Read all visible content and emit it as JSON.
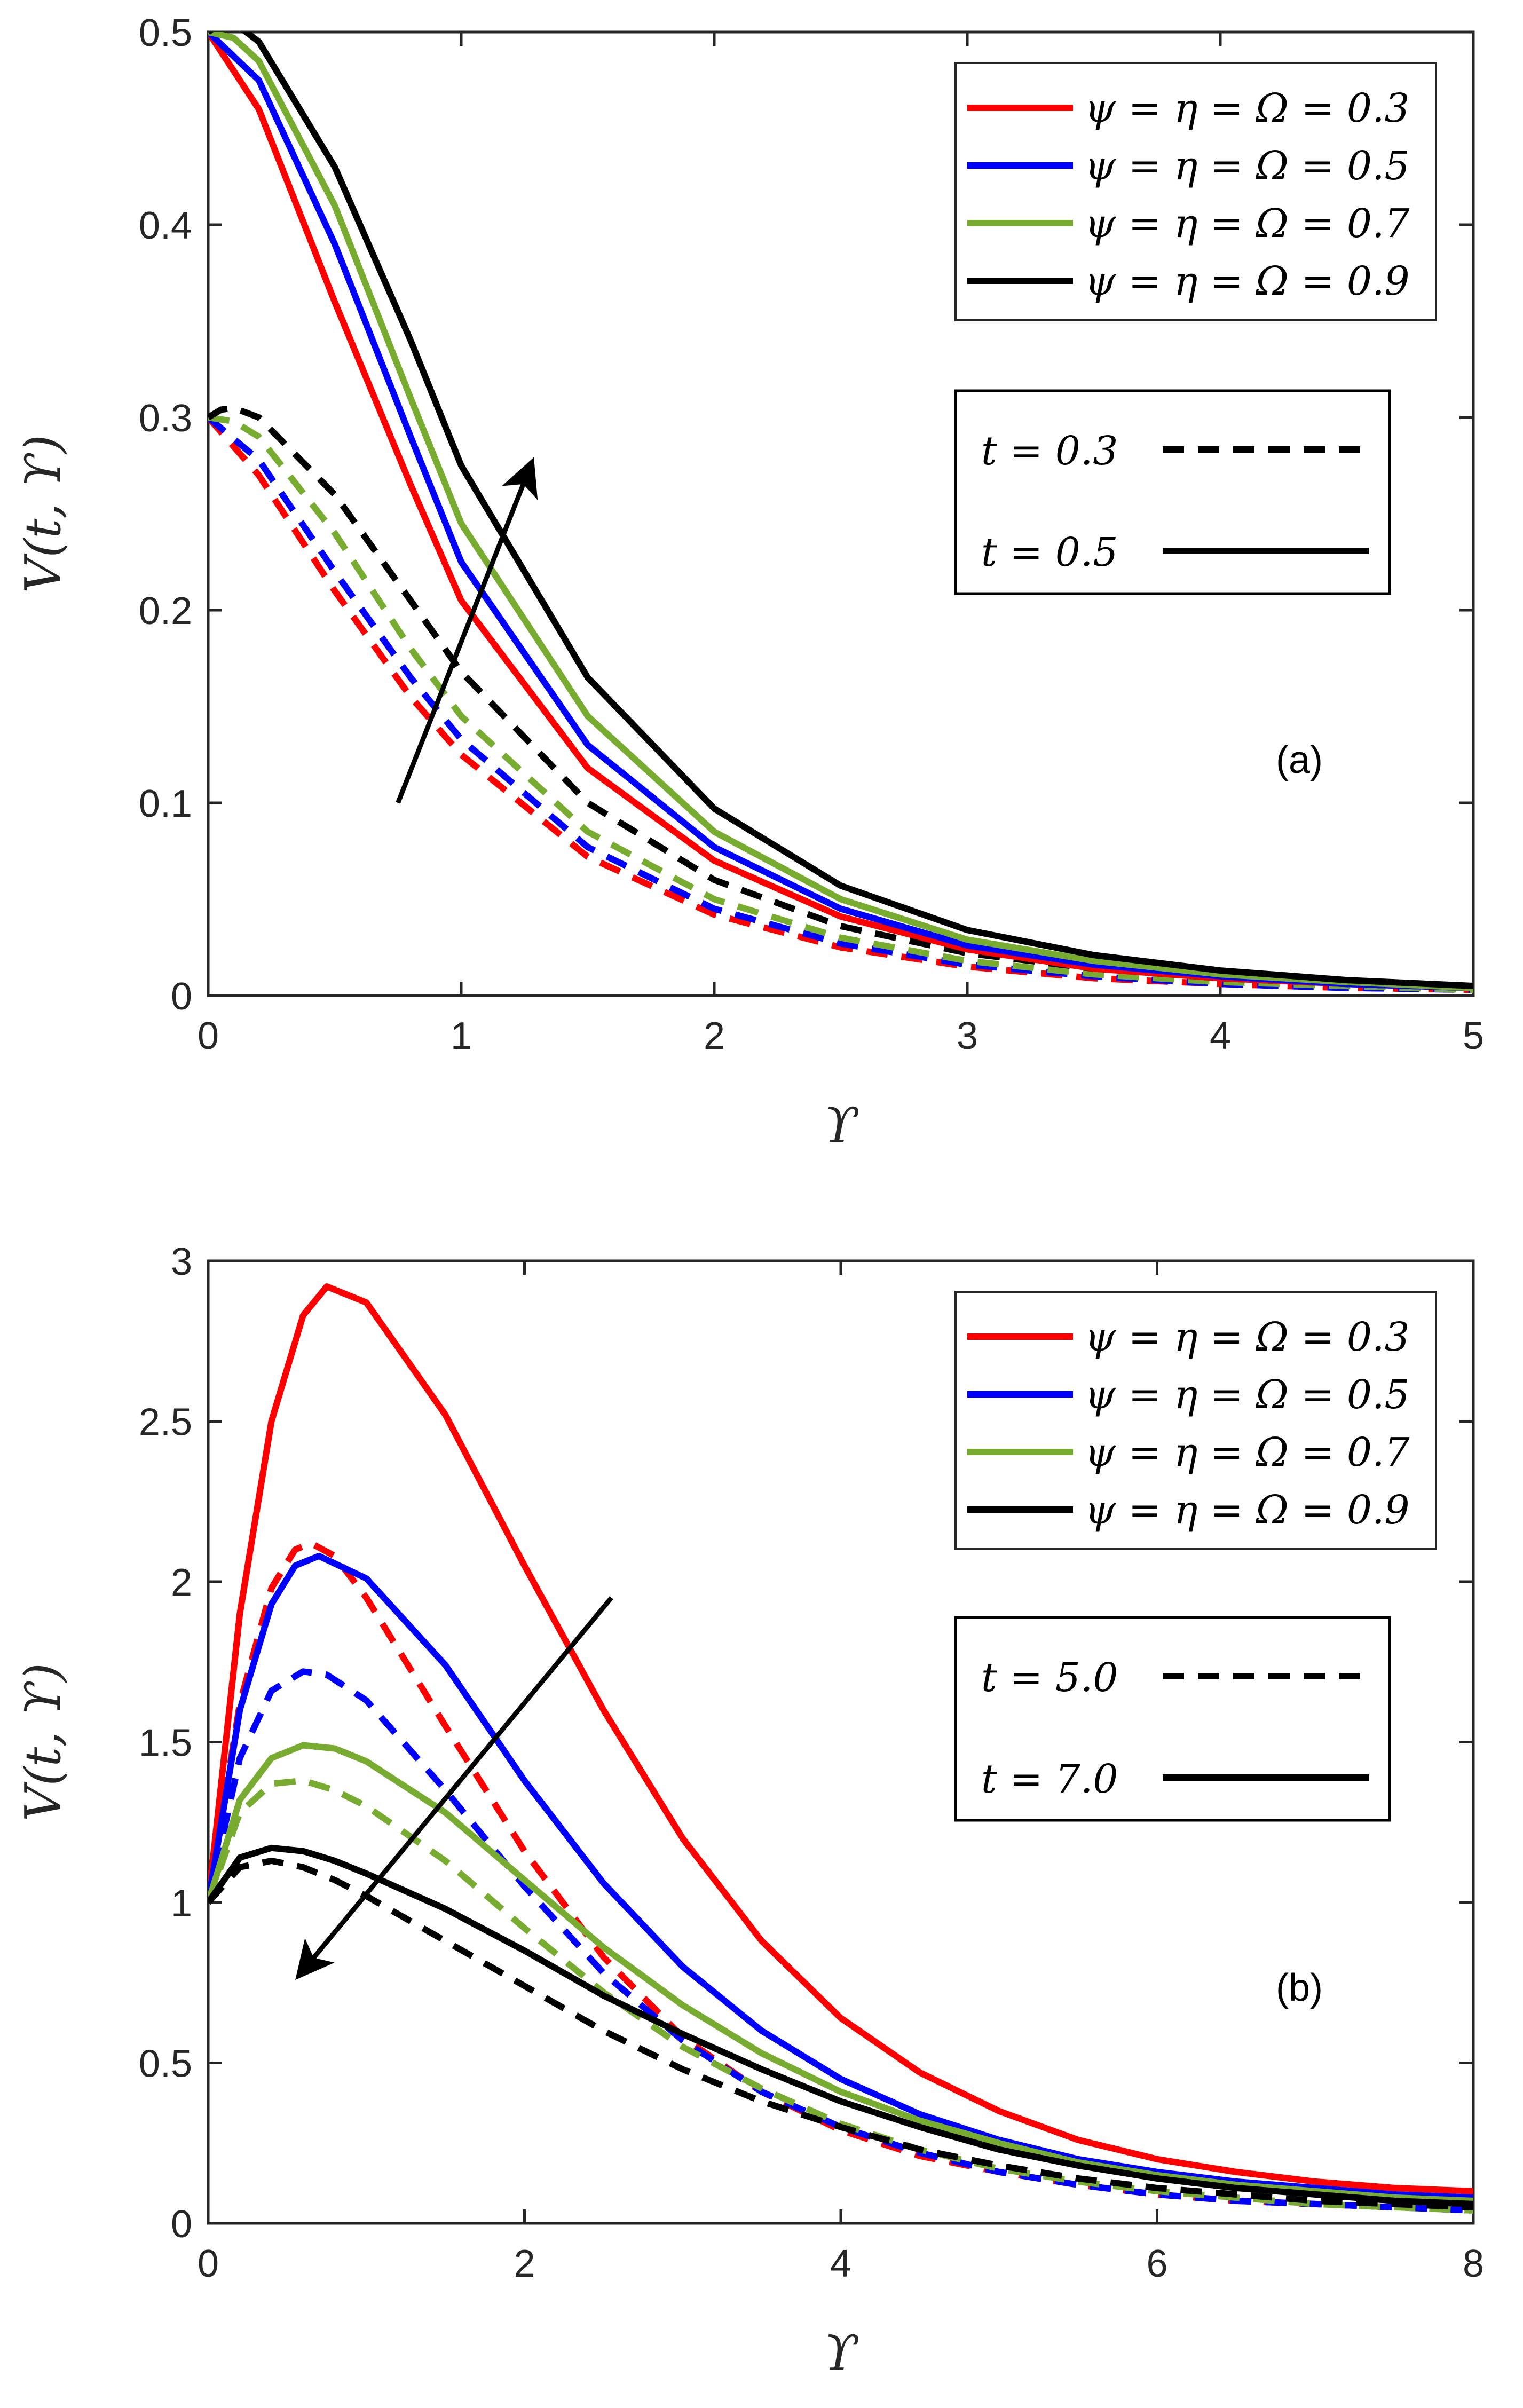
{
  "colors": {
    "red": "#ff0000",
    "blue": "#0000ff",
    "green": "#77ac30",
    "black": "#000000",
    "axis": "#262626"
  },
  "chart_data": [
    {
      "type": "line",
      "panel_label": "(a)",
      "xlabel": "ϒ",
      "ylabel": "V(t, ϒ)",
      "xlim": [
        0,
        5
      ],
      "ylim": [
        0,
        0.5
      ],
      "xticks": [
        "0",
        "1",
        "2",
        "3",
        "4",
        "5"
      ],
      "yticks": [
        "0",
        "0.1",
        "0.2",
        "0.3",
        "0.4",
        "0.5"
      ],
      "legend_params": [
        {
          "label": "ψ = η = Ω = 0.3",
          "color": "red"
        },
        {
          "label": "ψ = η = Ω = 0.5",
          "color": "blue"
        },
        {
          "label": "ψ = η = Ω = 0.7",
          "color": "green"
        },
        {
          "label": "ψ = η = Ω = 0.9",
          "color": "black"
        }
      ],
      "legend_time": [
        {
          "label": "t = 0.3",
          "style": "dashed"
        },
        {
          "label": "t = 0.5",
          "style": "solid"
        }
      ],
      "arrow": {
        "from": [
          0.75,
          0.1
        ],
        "to": [
          1.28,
          0.277
        ]
      },
      "series": [
        {
          "name": "ψ=η=Ω=0.3, t=0.5",
          "color": "red",
          "style": "solid",
          "x": [
            0,
            0.2,
            0.5,
            0.8,
            1,
            1.5,
            2,
            2.5,
            3,
            3.5,
            4,
            4.5,
            5
          ],
          "y": [
            0.5,
            0.46,
            0.36,
            0.265,
            0.205,
            0.118,
            0.07,
            0.041,
            0.024,
            0.014,
            0.009,
            0.006,
            0.004
          ]
        },
        {
          "name": "ψ=η=Ω=0.5, t=0.5",
          "color": "blue",
          "style": "solid",
          "x": [
            0,
            0.2,
            0.5,
            0.8,
            1,
            1.5,
            2,
            2.5,
            3,
            3.5,
            4,
            4.5,
            5
          ],
          "y": [
            0.5,
            0.475,
            0.39,
            0.29,
            0.225,
            0.13,
            0.077,
            0.045,
            0.026,
            0.016,
            0.01,
            0.006,
            0.004
          ]
        },
        {
          "name": "ψ=η=Ω=0.7, t=0.5",
          "color": "green",
          "style": "solid",
          "x": [
            0,
            0.1,
            0.2,
            0.5,
            0.8,
            1,
            1.5,
            2,
            2.5,
            3,
            3.5,
            4,
            4.5,
            5
          ],
          "y": [
            0.5,
            0.497,
            0.485,
            0.41,
            0.31,
            0.245,
            0.145,
            0.085,
            0.05,
            0.029,
            0.018,
            0.011,
            0.007,
            0.004
          ]
        },
        {
          "name": "ψ=η=Ω=0.9, t=0.5",
          "color": "black",
          "style": "solid",
          "x": [
            0,
            0.05,
            0.1,
            0.2,
            0.5,
            0.8,
            1,
            1.5,
            2,
            2.5,
            3,
            3.5,
            4,
            4.5,
            5
          ],
          "y": [
            0.5,
            0.505,
            0.505,
            0.495,
            0.43,
            0.34,
            0.275,
            0.165,
            0.097,
            0.057,
            0.034,
            0.021,
            0.013,
            0.008,
            0.005
          ]
        },
        {
          "name": "ψ=η=Ω=0.3, t=0.3",
          "color": "red",
          "style": "dashed",
          "x": [
            0,
            0.2,
            0.5,
            0.8,
            1,
            1.5,
            2,
            2.5,
            3,
            3.5,
            4,
            4.5,
            5
          ],
          "y": [
            0.3,
            0.27,
            0.21,
            0.155,
            0.125,
            0.072,
            0.042,
            0.025,
            0.015,
            0.009,
            0.006,
            0.004,
            0.003
          ]
        },
        {
          "name": "ψ=η=Ω=0.5, t=0.3",
          "color": "blue",
          "style": "dashed",
          "x": [
            0,
            0.2,
            0.5,
            0.8,
            1,
            1.5,
            2,
            2.5,
            3,
            3.5,
            4,
            4.5,
            5
          ],
          "y": [
            0.3,
            0.278,
            0.22,
            0.165,
            0.133,
            0.077,
            0.045,
            0.027,
            0.016,
            0.01,
            0.006,
            0.004,
            0.003
          ]
        },
        {
          "name": "ψ=η=Ω=0.7, t=0.3",
          "color": "green",
          "style": "dashed",
          "x": [
            0,
            0.1,
            0.2,
            0.5,
            0.8,
            1,
            1.5,
            2,
            2.5,
            3,
            3.5,
            4,
            4.5,
            5
          ],
          "y": [
            0.3,
            0.298,
            0.29,
            0.24,
            0.18,
            0.145,
            0.085,
            0.05,
            0.03,
            0.018,
            0.011,
            0.007,
            0.005,
            0.003
          ]
        },
        {
          "name": "ψ=η=Ω=0.9, t=0.3",
          "color": "black",
          "style": "dashed",
          "x": [
            0,
            0.05,
            0.1,
            0.2,
            0.5,
            0.8,
            1,
            1.5,
            2,
            2.5,
            3,
            3.5,
            4,
            4.5,
            5
          ],
          "y": [
            0.3,
            0.304,
            0.305,
            0.3,
            0.26,
            0.205,
            0.168,
            0.1,
            0.06,
            0.036,
            0.022,
            0.014,
            0.009,
            0.006,
            0.004
          ]
        }
      ]
    },
    {
      "type": "line",
      "panel_label": "(b)",
      "xlabel": "ϒ",
      "ylabel": "V(t, ϒ)",
      "xlim": [
        0,
        8
      ],
      "ylim": [
        0,
        3
      ],
      "xticks": [
        "0",
        "2",
        "4",
        "6",
        "8"
      ],
      "yticks": [
        "0",
        "0.5",
        "1",
        "1.5",
        "2",
        "2.5",
        "3"
      ],
      "legend_params": [
        {
          "label": "ψ = η = Ω = 0.3",
          "color": "red"
        },
        {
          "label": "ψ = η = Ω = 0.5",
          "color": "blue"
        },
        {
          "label": "ψ = η = Ω = 0.7",
          "color": "green"
        },
        {
          "label": "ψ = η = Ω = 0.9",
          "color": "black"
        }
      ],
      "legend_time": [
        {
          "label": "t = 5.0",
          "style": "dashed"
        },
        {
          "label": "t = 7.0",
          "style": "solid"
        }
      ],
      "arrow": {
        "from": [
          2.55,
          1.95
        ],
        "to": [
          0.57,
          0.77
        ]
      },
      "series": [
        {
          "name": "ψ=η=Ω=0.3, t=7.0",
          "color": "red",
          "style": "solid",
          "x": [
            0,
            0.2,
            0.4,
            0.6,
            0.75,
            1,
            1.5,
            2,
            2.5,
            3,
            3.5,
            4,
            4.5,
            5,
            5.5,
            6,
            6.5,
            7,
            7.5,
            8
          ],
          "y": [
            1,
            1.9,
            2.5,
            2.83,
            2.92,
            2.87,
            2.52,
            2.05,
            1.6,
            1.2,
            0.88,
            0.64,
            0.47,
            0.35,
            0.26,
            0.2,
            0.16,
            0.13,
            0.11,
            0.1
          ]
        },
        {
          "name": "ψ=η=Ω=0.5, t=7.0",
          "color": "blue",
          "style": "solid",
          "x": [
            0,
            0.2,
            0.4,
            0.55,
            0.7,
            1,
            1.5,
            2,
            2.5,
            3,
            3.5,
            4,
            4.5,
            5,
            5.5,
            6,
            6.5,
            7,
            7.5,
            8
          ],
          "y": [
            1,
            1.6,
            1.93,
            2.05,
            2.08,
            2.01,
            1.74,
            1.38,
            1.06,
            0.8,
            0.6,
            0.45,
            0.34,
            0.26,
            0.2,
            0.16,
            0.13,
            0.11,
            0.09,
            0.08
          ]
        },
        {
          "name": "ψ=η=Ω=0.7, t=7.0",
          "color": "green",
          "style": "solid",
          "x": [
            0,
            0.2,
            0.4,
            0.6,
            0.8,
            1,
            1.5,
            2,
            2.5,
            3,
            3.5,
            4,
            4.5,
            5,
            5.5,
            6,
            6.5,
            7,
            7.5,
            8
          ],
          "y": [
            1,
            1.32,
            1.45,
            1.49,
            1.48,
            1.44,
            1.28,
            1.07,
            0.86,
            0.68,
            0.53,
            0.41,
            0.32,
            0.25,
            0.19,
            0.15,
            0.12,
            0.1,
            0.08,
            0.07
          ]
        },
        {
          "name": "ψ=η=Ω=0.9, t=7.0",
          "color": "black",
          "style": "solid",
          "x": [
            0,
            0.2,
            0.4,
            0.6,
            0.8,
            1,
            1.5,
            2,
            2.5,
            3,
            3.5,
            4,
            4.5,
            5,
            5.5,
            6,
            6.5,
            7,
            7.5,
            8
          ],
          "y": [
            1,
            1.14,
            1.17,
            1.16,
            1.13,
            1.09,
            0.98,
            0.85,
            0.71,
            0.59,
            0.48,
            0.38,
            0.3,
            0.23,
            0.18,
            0.14,
            0.11,
            0.09,
            0.07,
            0.06
          ]
        },
        {
          "name": "ψ=η=Ω=0.3, t=5.0",
          "color": "red",
          "style": "dashed",
          "x": [
            0,
            0.2,
            0.4,
            0.55,
            0.65,
            0.8,
            1,
            1.5,
            2,
            2.5,
            3,
            3.5,
            4,
            4.5,
            5,
            5.5,
            6,
            6.5,
            7,
            7.5,
            8
          ],
          "y": [
            1,
            1.62,
            1.98,
            2.1,
            2.12,
            2.08,
            1.95,
            1.55,
            1.16,
            0.83,
            0.58,
            0.41,
            0.29,
            0.21,
            0.16,
            0.12,
            0.09,
            0.07,
            0.06,
            0.05,
            0.05
          ]
        },
        {
          "name": "ψ=η=Ω=0.5, t=5.0",
          "color": "blue",
          "style": "dashed",
          "x": [
            0,
            0.2,
            0.4,
            0.6,
            0.75,
            1,
            1.5,
            2,
            2.5,
            3,
            3.5,
            4,
            4.5,
            5,
            5.5,
            6,
            6.5,
            7,
            7.5,
            8
          ],
          "y": [
            1,
            1.45,
            1.66,
            1.72,
            1.71,
            1.63,
            1.35,
            1.05,
            0.78,
            0.57,
            0.41,
            0.3,
            0.22,
            0.16,
            0.12,
            0.09,
            0.07,
            0.06,
            0.05,
            0.04
          ]
        },
        {
          "name": "ψ=η=Ω=0.7, t=5.0",
          "color": "green",
          "style": "dashed",
          "x": [
            0,
            0.2,
            0.4,
            0.6,
            0.8,
            1,
            1.5,
            2,
            2.5,
            3,
            3.5,
            4,
            4.5,
            5,
            5.5,
            6,
            6.5,
            7,
            7.5,
            8
          ],
          "y": [
            1,
            1.28,
            1.37,
            1.38,
            1.35,
            1.3,
            1.13,
            0.92,
            0.72,
            0.55,
            0.42,
            0.31,
            0.23,
            0.17,
            0.13,
            0.1,
            0.08,
            0.06,
            0.05,
            0.04
          ]
        },
        {
          "name": "ψ=η=Ω=0.9, t=5.0",
          "color": "black",
          "style": "dashed",
          "x": [
            0,
            0.2,
            0.4,
            0.6,
            0.8,
            1,
            1.5,
            2,
            2.5,
            3,
            3.5,
            4,
            4.5,
            5,
            5.5,
            6,
            6.5,
            7,
            7.5,
            8
          ],
          "y": [
            1,
            1.11,
            1.13,
            1.11,
            1.07,
            1.02,
            0.88,
            0.74,
            0.6,
            0.48,
            0.38,
            0.3,
            0.23,
            0.18,
            0.14,
            0.11,
            0.09,
            0.07,
            0.06,
            0.05
          ]
        }
      ]
    }
  ]
}
